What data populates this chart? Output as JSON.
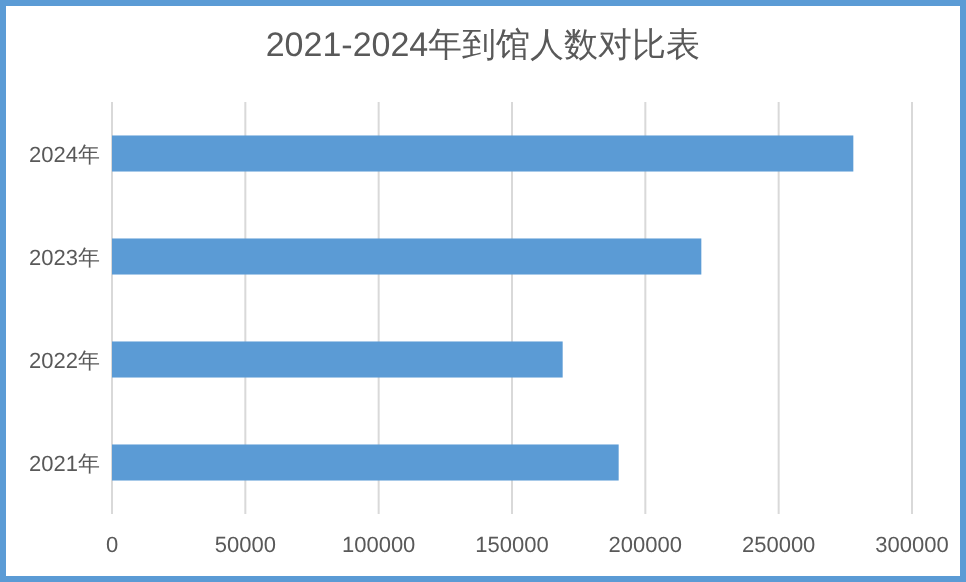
{
  "chart_data": {
    "type": "bar",
    "orientation": "horizontal",
    "title": "2021-2024年到馆人数对比表",
    "categories": [
      "2024年",
      "2023年",
      "2022年",
      "2021年"
    ],
    "values": [
      278000,
      221000,
      169000,
      190000
    ],
    "color": "#5b9bd5",
    "xlim": [
      0,
      300000
    ],
    "xticks": [
      0,
      50000,
      100000,
      150000,
      200000,
      250000,
      300000
    ],
    "grid": "x"
  }
}
